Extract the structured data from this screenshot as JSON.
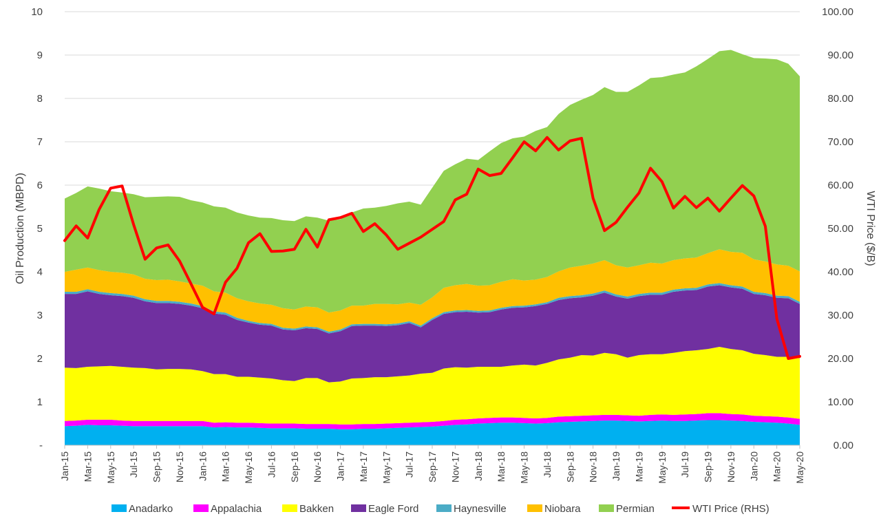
{
  "chart_data": {
    "type": "area",
    "title": "",
    "ylabel": "Oil Production (MBPD)",
    "y2label": "WTI Price ($/B)",
    "ylim": [
      0,
      10
    ],
    "y2lim": [
      0,
      100
    ],
    "yticks": [
      "-",
      "1",
      "2",
      "3",
      "4",
      "5",
      "6",
      "7",
      "8",
      "9",
      "10"
    ],
    "y2ticks": [
      "0.00",
      "10.00",
      "20.00",
      "30.00",
      "40.00",
      "50.00",
      "60.00",
      "70.00",
      "80.00",
      "90.00",
      "100.00"
    ],
    "stacked": true,
    "grid": true,
    "legend_position": "bottom",
    "x": [
      "Jan-15",
      "Feb-15",
      "Mar-15",
      "Apr-15",
      "May-15",
      "Jun-15",
      "Jul-15",
      "Aug-15",
      "Sep-15",
      "Oct-15",
      "Nov-15",
      "Dec-15",
      "Jan-16",
      "Feb-16",
      "Mar-16",
      "Apr-16",
      "May-16",
      "Jun-16",
      "Jul-16",
      "Aug-16",
      "Sep-16",
      "Oct-16",
      "Nov-16",
      "Dec-16",
      "Jan-17",
      "Feb-17",
      "Mar-17",
      "Apr-17",
      "May-17",
      "Jun-17",
      "Jul-17",
      "Aug-17",
      "Sep-17",
      "Oct-17",
      "Nov-17",
      "Dec-17",
      "Jan-18",
      "Feb-18",
      "Mar-18",
      "Apr-18",
      "May-18",
      "Jun-18",
      "Jul-18",
      "Aug-18",
      "Sep-18",
      "Oct-18",
      "Nov-18",
      "Dec-18",
      "Jan-19",
      "Feb-19",
      "Mar-19",
      "Apr-19",
      "May-19",
      "Jun-19",
      "Jul-19",
      "Aug-19",
      "Sep-19",
      "Oct-19",
      "Nov-19",
      "Dec-19",
      "Jan-20",
      "Feb-20",
      "Mar-20",
      "Apr-20",
      "May-20"
    ],
    "x_tick_labels": [
      "Jan-15",
      "Mar-15",
      "May-15",
      "Jul-15",
      "Sep-15",
      "Nov-15",
      "Jan-16",
      "Mar-16",
      "May-16",
      "Jul-16",
      "Sep-16",
      "Nov-16",
      "Jan-17",
      "Mar-17",
      "May-17",
      "Jul-17",
      "Sep-17",
      "Nov-17",
      "Jan-18",
      "Mar-18",
      "May-18",
      "Jul-18",
      "Sep-18",
      "Nov-18",
      "Jan-19",
      "Mar-19",
      "May-19",
      "Jul-19",
      "Sep-19",
      "Nov-19",
      "Jan-20",
      "Mar-20",
      "May-20"
    ],
    "series": [
      {
        "name": "Anadarko",
        "color": "#00B0F0",
        "axis": "left",
        "values": [
          0.44,
          0.45,
          0.47,
          0.46,
          0.46,
          0.45,
          0.44,
          0.44,
          0.44,
          0.44,
          0.44,
          0.44,
          0.44,
          0.41,
          0.42,
          0.41,
          0.41,
          0.4,
          0.39,
          0.39,
          0.39,
          0.38,
          0.38,
          0.38,
          0.37,
          0.37,
          0.38,
          0.38,
          0.39,
          0.4,
          0.41,
          0.42,
          0.43,
          0.45,
          0.47,
          0.48,
          0.5,
          0.51,
          0.52,
          0.52,
          0.51,
          0.5,
          0.51,
          0.53,
          0.54,
          0.55,
          0.56,
          0.57,
          0.57,
          0.56,
          0.55,
          0.56,
          0.57,
          0.56,
          0.56,
          0.57,
          0.58,
          0.58,
          0.57,
          0.56,
          0.54,
          0.53,
          0.52,
          0.5,
          0.47
        ]
      },
      {
        "name": "Appalachia",
        "color": "#FF00FF",
        "axis": "left",
        "values": [
          0.12,
          0.12,
          0.12,
          0.13,
          0.13,
          0.12,
          0.12,
          0.12,
          0.12,
          0.12,
          0.12,
          0.12,
          0.12,
          0.11,
          0.11,
          0.11,
          0.11,
          0.11,
          0.11,
          0.11,
          0.11,
          0.11,
          0.11,
          0.11,
          0.11,
          0.11,
          0.11,
          0.11,
          0.11,
          0.11,
          0.11,
          0.11,
          0.11,
          0.11,
          0.12,
          0.12,
          0.12,
          0.12,
          0.12,
          0.12,
          0.12,
          0.12,
          0.12,
          0.13,
          0.13,
          0.13,
          0.13,
          0.13,
          0.13,
          0.13,
          0.13,
          0.14,
          0.14,
          0.14,
          0.15,
          0.15,
          0.16,
          0.16,
          0.15,
          0.15,
          0.14,
          0.14,
          0.14,
          0.14,
          0.14
        ]
      },
      {
        "name": "Bakken",
        "color": "#FFFF00",
        "axis": "left",
        "values": [
          1.23,
          1.21,
          1.22,
          1.23,
          1.24,
          1.24,
          1.23,
          1.22,
          1.19,
          1.2,
          1.2,
          1.19,
          1.15,
          1.12,
          1.11,
          1.06,
          1.06,
          1.05,
          1.04,
          1.0,
          0.98,
          1.06,
          1.06,
          0.96,
          0.99,
          1.06,
          1.06,
          1.08,
          1.07,
          1.08,
          1.09,
          1.12,
          1.13,
          1.21,
          1.21,
          1.19,
          1.19,
          1.18,
          1.17,
          1.2,
          1.23,
          1.22,
          1.27,
          1.32,
          1.35,
          1.4,
          1.38,
          1.43,
          1.4,
          1.33,
          1.4,
          1.4,
          1.39,
          1.43,
          1.46,
          1.47,
          1.48,
          1.53,
          1.5,
          1.48,
          1.43,
          1.41,
          1.38,
          1.4,
          1.4
        ]
      },
      {
        "name": "Eagle Ford",
        "color": "#7030A0",
        "axis": "left",
        "values": [
          1.7,
          1.71,
          1.74,
          1.67,
          1.63,
          1.63,
          1.61,
          1.54,
          1.53,
          1.52,
          1.5,
          1.47,
          1.45,
          1.4,
          1.37,
          1.31,
          1.25,
          1.22,
          1.22,
          1.17,
          1.17,
          1.15,
          1.13,
          1.13,
          1.16,
          1.21,
          1.21,
          1.19,
          1.18,
          1.18,
          1.21,
          1.07,
          1.22,
          1.26,
          1.27,
          1.29,
          1.25,
          1.26,
          1.32,
          1.33,
          1.32,
          1.37,
          1.36,
          1.37,
          1.37,
          1.33,
          1.38,
          1.39,
          1.33,
          1.36,
          1.36,
          1.37,
          1.37,
          1.41,
          1.4,
          1.39,
          1.44,
          1.42,
          1.42,
          1.42,
          1.38,
          1.38,
          1.36,
          1.35,
          1.25
        ]
      },
      {
        "name": "Haynesville",
        "color": "#4BACC6",
        "axis": "left",
        "values": [
          0.05,
          0.05,
          0.05,
          0.05,
          0.05,
          0.05,
          0.05,
          0.05,
          0.05,
          0.05,
          0.05,
          0.05,
          0.05,
          0.05,
          0.05,
          0.05,
          0.04,
          0.04,
          0.04,
          0.04,
          0.04,
          0.04,
          0.04,
          0.04,
          0.04,
          0.04,
          0.04,
          0.04,
          0.04,
          0.04,
          0.04,
          0.04,
          0.04,
          0.04,
          0.04,
          0.04,
          0.04,
          0.04,
          0.04,
          0.04,
          0.04,
          0.04,
          0.04,
          0.05,
          0.05,
          0.05,
          0.05,
          0.05,
          0.05,
          0.05,
          0.05,
          0.05,
          0.05,
          0.05,
          0.05,
          0.05,
          0.05,
          0.05,
          0.05,
          0.05,
          0.05,
          0.05,
          0.05,
          0.05,
          0.05
        ]
      },
      {
        "name": "Niobara",
        "color": "#FFC000",
        "axis": "left",
        "values": [
          0.46,
          0.51,
          0.5,
          0.5,
          0.49,
          0.49,
          0.49,
          0.47,
          0.48,
          0.49,
          0.47,
          0.46,
          0.47,
          0.46,
          0.46,
          0.45,
          0.45,
          0.45,
          0.44,
          0.45,
          0.44,
          0.46,
          0.46,
          0.44,
          0.44,
          0.43,
          0.42,
          0.46,
          0.47,
          0.44,
          0.43,
          0.48,
          0.48,
          0.56,
          0.58,
          0.6,
          0.58,
          0.58,
          0.6,
          0.62,
          0.58,
          0.57,
          0.58,
          0.61,
          0.66,
          0.68,
          0.69,
          0.7,
          0.67,
          0.67,
          0.66,
          0.69,
          0.67,
          0.68,
          0.69,
          0.7,
          0.72,
          0.78,
          0.77,
          0.78,
          0.75,
          0.73,
          0.72,
          0.7,
          0.7
        ]
      },
      {
        "name": "Permian",
        "color": "#92D050",
        "axis": "left",
        "values": [
          1.69,
          1.77,
          1.87,
          1.88,
          1.86,
          1.85,
          1.85,
          1.88,
          1.92,
          1.92,
          1.95,
          1.92,
          1.92,
          1.96,
          1.96,
          1.98,
          1.98,
          1.98,
          2.0,
          2.03,
          2.04,
          2.08,
          2.07,
          2.12,
          2.1,
          2.15,
          2.24,
          2.22,
          2.26,
          2.33,
          2.33,
          2.31,
          2.53,
          2.7,
          2.79,
          2.89,
          2.9,
          3.09,
          3.2,
          3.25,
          3.32,
          3.43,
          3.46,
          3.63,
          3.75,
          3.83,
          3.89,
          3.99,
          4.0,
          4.05,
          4.15,
          4.26,
          4.3,
          4.28,
          4.29,
          4.41,
          4.48,
          4.57,
          4.66,
          4.58,
          4.64,
          4.68,
          4.73,
          4.66,
          4.5
        ]
      },
      {
        "name": "WTI Price (RHS)",
        "color": "#FF0000",
        "axis": "right",
        "type": "line",
        "values": [
          47.2,
          50.6,
          47.8,
          54.4,
          59.3,
          59.8,
          50.9,
          42.9,
          45.5,
          46.2,
          42.5,
          37.2,
          31.8,
          30.3,
          37.6,
          40.8,
          46.7,
          48.8,
          44.7,
          44.8,
          45.2,
          49.8,
          45.7,
          52.0,
          52.5,
          53.5,
          49.3,
          51.1,
          48.5,
          45.2,
          46.6,
          48.0,
          49.8,
          51.6,
          56.6,
          57.9,
          63.7,
          62.2,
          62.7,
          66.3,
          70.0,
          67.9,
          71.0,
          68.1,
          70.2,
          70.8,
          57.0,
          49.5,
          51.4,
          54.9,
          58.2,
          63.9,
          60.8,
          54.7,
          57.4,
          54.8,
          57.0,
          54.0,
          57.0,
          59.9,
          57.5,
          50.5,
          29.2,
          20.0,
          20.5
        ]
      }
    ]
  }
}
